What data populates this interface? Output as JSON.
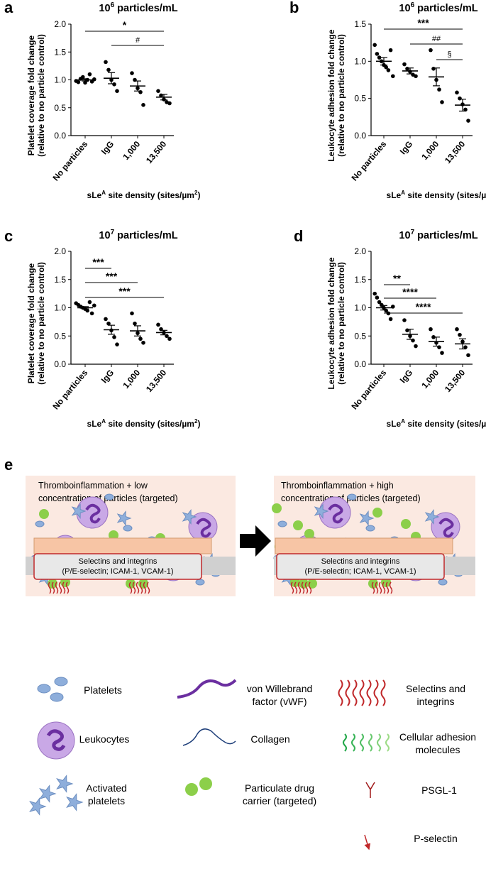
{
  "panel_letters": [
    "a",
    "b",
    "c",
    "d",
    "e"
  ],
  "xaxis_label_main": "sLe",
  "xaxis_label_sup": "A",
  "xaxis_label_tail": " site density  (sites/µm",
  "xaxis_label_sup2": "2",
  "xaxis_label_close": ")",
  "chart_data": [
    {
      "type": "scatter",
      "panel": "a",
      "title_base": "10",
      "title_exp": "6",
      "title_rest": " particles/mL",
      "ylabel": [
        "Platelet coverage fold change",
        "(relative to no particle control)"
      ],
      "categories": [
        "No particles",
        "IgG",
        "1,000",
        "13,500"
      ],
      "ylim": [
        0,
        2.0
      ],
      "yticks": [
        "0.0",
        "0.5",
        "1.0",
        "1.5",
        "2.0"
      ],
      "points": [
        [
          0.98,
          0.96,
          1.02,
          1.05,
          0.95,
          1.0,
          1.1,
          0.97,
          1.01
        ],
        [
          1.32,
          1.18,
          1.0,
          0.92,
          0.8
        ],
        [
          1.12,
          1.0,
          0.85,
          0.78,
          0.55
        ],
        [
          0.8,
          0.72,
          0.65,
          0.6,
          0.58
        ]
      ],
      "means": [
        1.0,
        1.03,
        0.89,
        0.69
      ],
      "sems": [
        0.02,
        0.1,
        0.09,
        0.05
      ],
      "sig": [
        {
          "from": 0,
          "to": 3,
          "label": "*"
        },
        {
          "from": 1,
          "to": 3,
          "label": "#"
        }
      ]
    },
    {
      "type": "scatter",
      "panel": "b",
      "title_base": "10",
      "title_exp": "6",
      "title_rest": " particles/mL",
      "ylabel": [
        "Leukocyte adhesion fold change",
        "(relative to no particle control)"
      ],
      "categories": [
        "No particles",
        "IgG",
        "1,000",
        "13,500"
      ],
      "ylim": [
        0,
        1.5
      ],
      "yticks": [
        "0.0",
        "0.5",
        "1.0",
        "1.5"
      ],
      "points": [
        [
          1.22,
          1.1,
          1.05,
          1.0,
          0.95,
          0.92,
          0.88,
          1.15,
          0.8
        ],
        [
          0.96,
          0.9,
          0.86,
          0.82,
          0.8
        ],
        [
          1.15,
          0.9,
          0.75,
          0.62,
          0.45
        ],
        [
          0.58,
          0.5,
          0.42,
          0.35,
          0.2
        ]
      ],
      "means": [
        1.0,
        0.87,
        0.79,
        0.41
      ],
      "sems": [
        0.05,
        0.04,
        0.12,
        0.08
      ],
      "sig": [
        {
          "from": 0,
          "to": 3,
          "label": "***"
        },
        {
          "from": 1,
          "to": 3,
          "label": "##"
        },
        {
          "from": 2,
          "to": 3,
          "label": "§"
        }
      ]
    },
    {
      "type": "scatter",
      "panel": "c",
      "title_base": "10",
      "title_exp": "7",
      "title_rest": " particles/mL",
      "ylabel": [
        "Platelet coverage fold change",
        "(relative to no particle control)"
      ],
      "categories": [
        "No particles",
        "IgG",
        "1,000",
        "13,500"
      ],
      "ylim": [
        0,
        2.0
      ],
      "yticks": [
        "0.0",
        "0.5",
        "1.0",
        "1.5",
        "2.0"
      ],
      "points": [
        [
          1.08,
          1.05,
          1.02,
          1.0,
          0.98,
          0.95,
          1.1,
          0.9,
          1.04
        ],
        [
          0.8,
          0.72,
          0.6,
          0.48,
          0.35
        ],
        [
          0.9,
          0.72,
          0.55,
          0.45,
          0.38
        ],
        [
          0.7,
          0.62,
          0.56,
          0.5,
          0.45
        ]
      ],
      "means": [
        1.0,
        0.61,
        0.59,
        0.56
      ],
      "sems": [
        0.02,
        0.08,
        0.09,
        0.04
      ],
      "sig": [
        {
          "from": 0,
          "to": 1,
          "label": "***"
        },
        {
          "from": 0,
          "to": 2,
          "label": "***"
        },
        {
          "from": 0,
          "to": 3,
          "label": "***"
        }
      ]
    },
    {
      "type": "scatter",
      "panel": "d",
      "title_base": "10",
      "title_exp": "7",
      "title_rest": " particles/mL",
      "ylabel": [
        "Leukocyte adhesion fold change",
        "(relative to no particle control)"
      ],
      "categories": [
        "No particles",
        "IgG",
        "1,000",
        "13,500"
      ],
      "ylim": [
        0,
        2.0
      ],
      "yticks": [
        "0.0",
        "0.5",
        "1.0",
        "1.5",
        "2.0"
      ],
      "points": [
        [
          1.25,
          1.18,
          1.1,
          1.05,
          1.0,
          0.95,
          0.9,
          0.8,
          1.02
        ],
        [
          0.78,
          0.6,
          0.5,
          0.42,
          0.32
        ],
        [
          0.62,
          0.48,
          0.38,
          0.3,
          0.2
        ],
        [
          0.62,
          0.52,
          0.4,
          0.3,
          0.16
        ]
      ],
      "means": [
        1.0,
        0.53,
        0.4,
        0.36
      ],
      "sems": [
        0.04,
        0.09,
        0.08,
        0.09
      ],
      "sig": [
        {
          "from": 0,
          "to": 1,
          "label": "**"
        },
        {
          "from": 0,
          "to": 2,
          "label": "****"
        },
        {
          "from": 0,
          "to": 3,
          "label": "****"
        }
      ]
    }
  ],
  "schematic": {
    "left_caption_1": "Thromboinflammation +  low",
    "left_caption_2": "concentration of particles (targeted)",
    "right_caption_1": "Thromboinflammation + high",
    "right_caption_2": "concentration of particles (targeted)",
    "box_line_1": "Selectins and integrins",
    "box_line_2": "(P/E-selectin; ICAM-1, VCAM-1)",
    "colors": {
      "background": "#fbe9e1",
      "endothelium": "#f7c5a5",
      "box_border": "#c0282a",
      "particle": "#8ccf4a",
      "leukocyte": "#c9a8e6",
      "platelet": "#8eaedb",
      "vwf": "#6b2fa0"
    }
  },
  "legend": {
    "platelets": "Platelets",
    "leukocytes": "Leukocytes",
    "activated_1": "Activated",
    "activated_2": "platelets",
    "vwf_1": "von Willebrand",
    "vwf_2": "factor (vWF)",
    "collagen": "Collagen",
    "carrier_1": "Particulate drug",
    "carrier_2": "carrier (targeted)",
    "selectins_1": "Selectins and",
    "selectins_2": "integrins",
    "cam_1": "Cellular adhesion",
    "cam_2": "molecules",
    "psgl": "PSGL-1",
    "pselectin": "P-selectin"
  }
}
